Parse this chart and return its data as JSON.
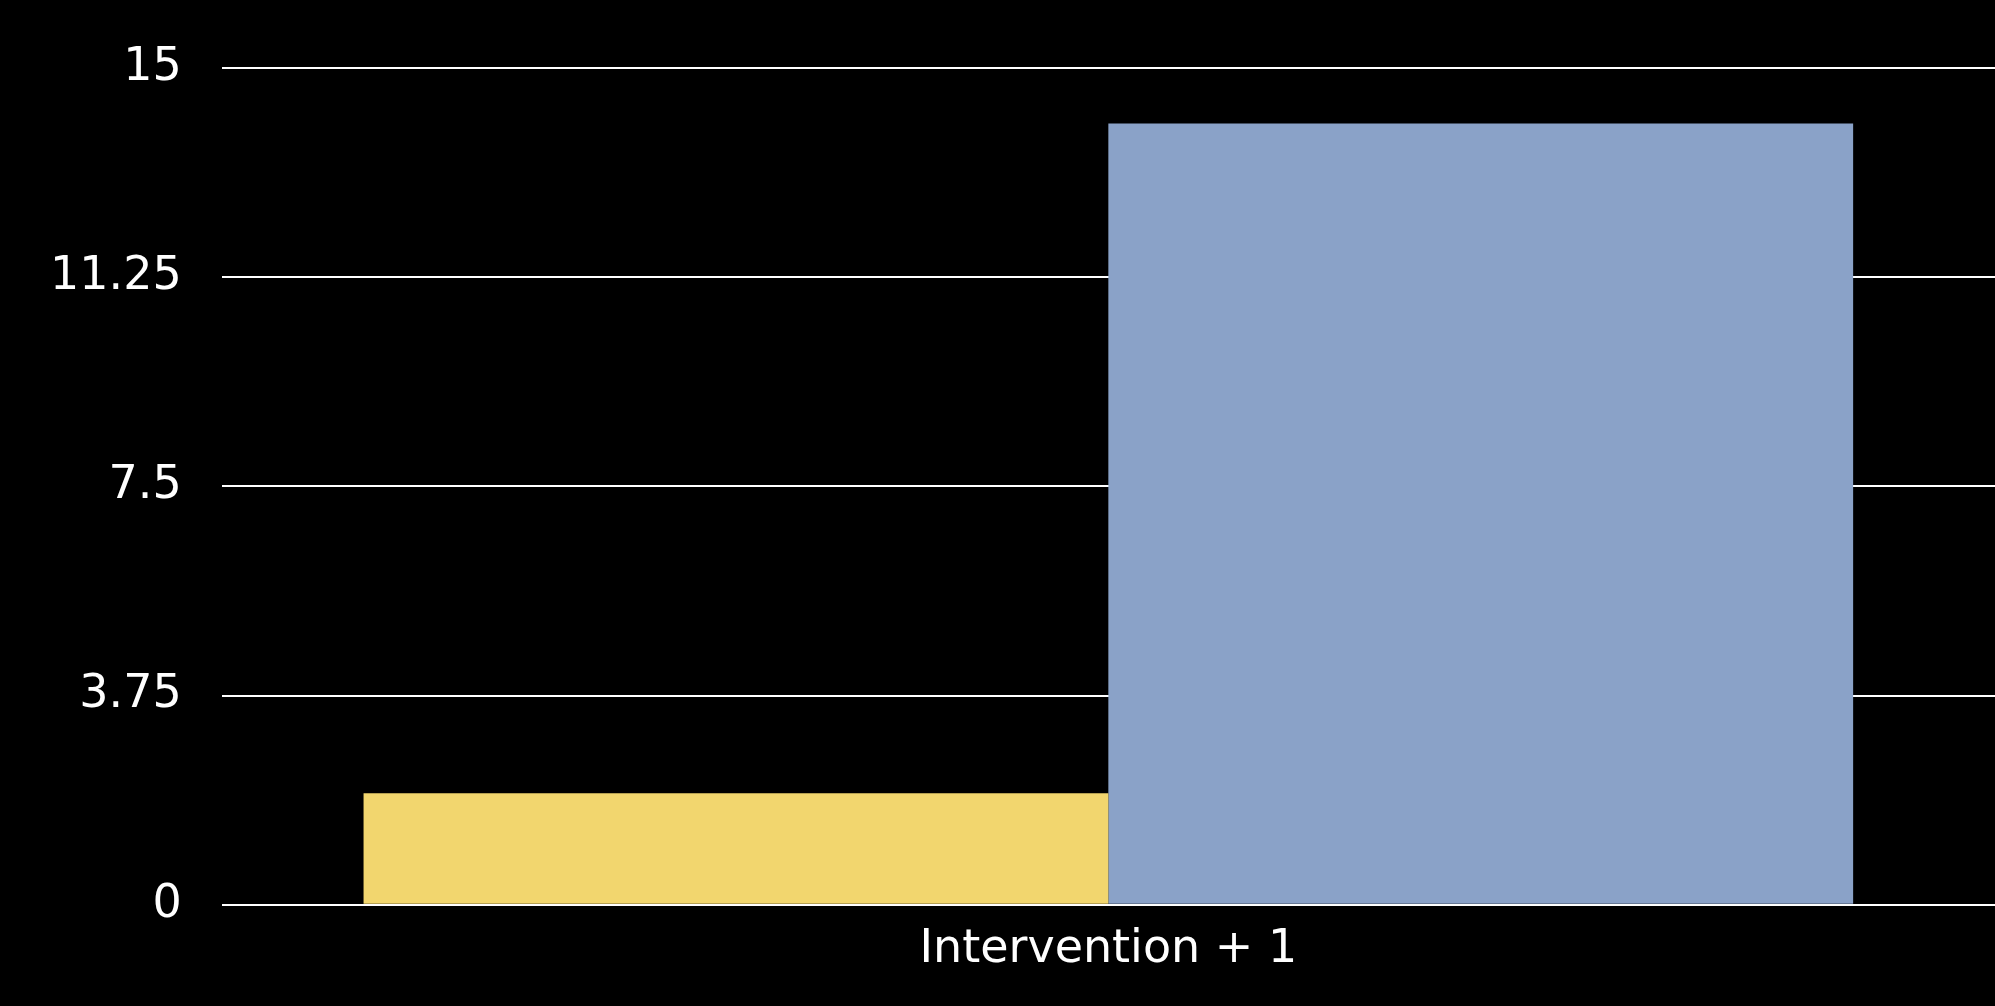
{
  "chart_data": {
    "type": "bar",
    "categories": [
      "Intervention + 1"
    ],
    "series": [
      {
        "color": "#f2d66e",
        "values": [
          2
        ]
      },
      {
        "color": "#8aa2c8",
        "values": [
          14
        ]
      }
    ],
    "ylim": [
      0,
      15
    ],
    "yticks": [
      0,
      3.75,
      7.5,
      11.25,
      15
    ],
    "grid": "y",
    "legend": false
  }
}
